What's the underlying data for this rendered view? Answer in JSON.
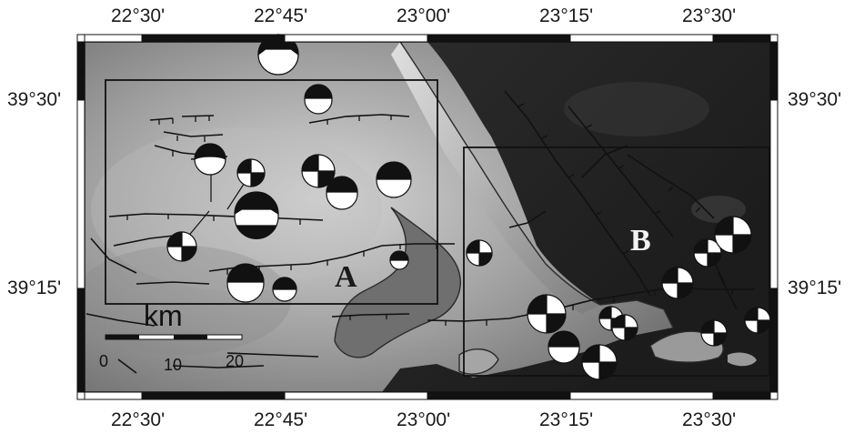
{
  "map": {
    "lon_labels_top": [
      "22°30'",
      "22°45'",
      "23°00'",
      "23°15'",
      "23°30'"
    ],
    "lon_labels_bottom": [
      "22°30'",
      "22°45'",
      "23°00'",
      "23°15'",
      "23°30'"
    ],
    "lat_labels_left": [
      "39°30'",
      "39°15'"
    ],
    "lat_labels_right": [
      "39°30'",
      "39°15'"
    ],
    "region_labels": [
      "A",
      "B"
    ],
    "scale_bar": {
      "unit": "km",
      "ticks": [
        "0",
        "10",
        "20"
      ]
    },
    "colors": {
      "land_light": "#d9d9d9",
      "land_dark": "#555555",
      "sea": "#2b2b2b",
      "fault": "#111111",
      "label_A": "#1a1a1a",
      "label_B": "#f2f2f2"
    }
  }
}
